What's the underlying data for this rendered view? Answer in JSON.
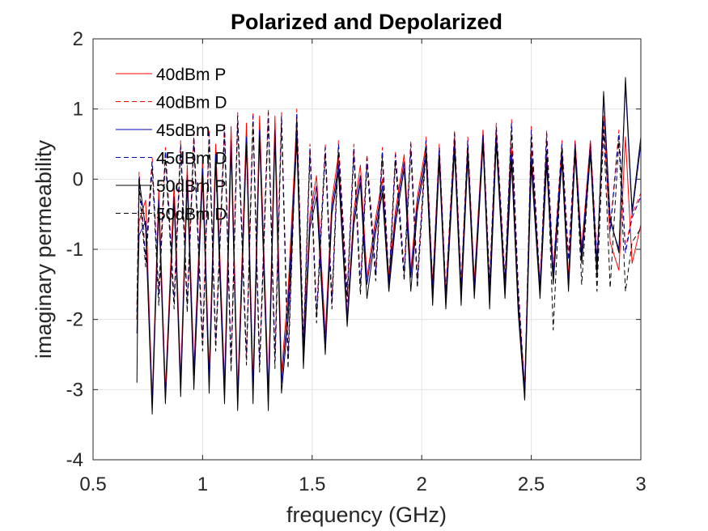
{
  "chart_data": {
    "type": "line",
    "title": "Polarized and Depolarized",
    "xlabel": "frequency (GHz)",
    "ylabel": "imaginary permeability",
    "xlim": [
      0.5,
      3
    ],
    "ylim": [
      -4,
      2
    ],
    "xticks": [
      "0.5",
      "1",
      "1.5",
      "2",
      "2.5",
      "3"
    ],
    "yticks": [
      "-4",
      "-3",
      "-2",
      "-1",
      "0",
      "1",
      "2"
    ],
    "grid": true,
    "legend_position": "top-left",
    "series": [
      {
        "name": "40dBm P",
        "color": "#ff0000",
        "dash": "solid",
        "x": [
          0.7,
          0.71,
          0.74,
          0.77,
          0.8,
          0.83,
          0.87,
          0.9,
          0.93,
          0.96,
          1.0,
          1.03,
          1.06,
          1.1,
          1.13,
          1.16,
          1.2,
          1.23,
          1.26,
          1.3,
          1.33,
          1.36,
          1.39,
          1.43,
          1.46,
          1.49,
          1.52,
          1.56,
          1.59,
          1.62,
          1.66,
          1.69,
          1.72,
          1.75,
          1.79,
          1.82,
          1.85,
          1.88,
          1.92,
          1.95,
          1.98,
          2.02,
          2.05,
          2.08,
          2.11,
          2.15,
          2.18,
          2.21,
          2.24,
          2.28,
          2.31,
          2.34,
          2.38,
          2.41,
          2.44,
          2.47,
          2.5,
          2.54,
          2.57,
          2.6,
          2.64,
          2.67,
          2.7,
          2.73,
          2.77,
          2.8,
          2.83,
          2.86,
          2.9,
          2.93,
          2.96,
          3.0
        ],
        "y": [
          -2.0,
          -0.6,
          -0.3,
          -3.15,
          -0.15,
          -3.0,
          -0.05,
          -2.85,
          0.2,
          -2.7,
          0.3,
          -2.75,
          0.5,
          -2.9,
          0.75,
          -3.05,
          0.8,
          -2.9,
          0.9,
          -3.0,
          0.9,
          -2.75,
          -1.6,
          0.85,
          -2.45,
          -0.5,
          0.05,
          -2.2,
          -0.3,
          0.35,
          -1.95,
          -0.45,
          0.2,
          -1.4,
          -0.55,
          0.0,
          -1.4,
          -0.45,
          0.35,
          -1.3,
          -0.25,
          0.5,
          -1.5,
          0.45,
          -1.65,
          0.6,
          -1.55,
          0.5,
          -1.45,
          0.7,
          -1.6,
          0.7,
          -1.5,
          0.45,
          -1.7,
          -2.95,
          0.4,
          -1.5,
          0.4,
          -1.3,
          0.45,
          -1.4,
          0.55,
          -1.0,
          0.55,
          -1.2,
          0.9,
          -0.9,
          -1.3,
          0.6,
          -1.2,
          -0.65
        ]
      },
      {
        "name": "40dBm D",
        "color": "#ff0000",
        "dash": "dashed",
        "x": [
          0.7,
          0.71,
          0.74,
          0.77,
          0.8,
          0.83,
          0.87,
          0.9,
          0.93,
          0.96,
          1.0,
          1.03,
          1.06,
          1.1,
          1.13,
          1.16,
          1.2,
          1.23,
          1.26,
          1.3,
          1.33,
          1.36,
          1.39,
          1.43,
          1.46,
          1.49,
          1.52,
          1.56,
          1.59,
          1.62,
          1.66,
          1.69,
          1.72,
          1.75,
          1.79,
          1.82,
          1.85,
          1.88,
          1.92,
          1.95,
          1.98,
          2.02,
          2.05,
          2.08,
          2.11,
          2.15,
          2.18,
          2.21,
          2.24,
          2.28,
          2.31,
          2.34,
          2.38,
          2.41,
          2.44,
          2.47,
          2.5,
          2.54,
          2.57,
          2.6,
          2.64,
          2.67,
          2.7,
          2.73,
          2.77,
          2.8,
          2.83,
          2.86,
          2.9,
          2.93,
          2.96,
          3.0
        ],
        "y": [
          -1.8,
          0.1,
          -1.1,
          0.3,
          -1.6,
          0.45,
          -1.7,
          0.55,
          -1.75,
          0.65,
          -2.3,
          0.7,
          -2.3,
          0.8,
          -2.6,
          0.95,
          -2.5,
          0.95,
          -2.6,
          1.0,
          -2.5,
          0.95,
          -2.5,
          1.0,
          -2.3,
          0.5,
          -1.9,
          0.5,
          -1.7,
          0.55,
          -1.6,
          0.5,
          -1.5,
          0.35,
          -1.3,
          0.45,
          -1.45,
          0.4,
          -1.3,
          0.55,
          -1.4,
          0.6,
          -1.5,
          0.5,
          -1.6,
          0.7,
          -1.5,
          0.6,
          -1.5,
          0.7,
          -1.45,
          0.8,
          -1.4,
          0.85,
          -1.5,
          -3.0,
          0.75,
          -1.5,
          0.7,
          -1.3,
          0.55,
          -1.1,
          0.55,
          -1.0,
          0.55,
          -1.1,
          0.9,
          -0.7,
          0.7,
          -1.0,
          -0.5,
          -0.2
        ]
      },
      {
        "name": "45dBm P",
        "color": "#0000aa",
        "dash": "solid",
        "x": [
          0.7,
          0.71,
          0.74,
          0.77,
          0.8,
          0.83,
          0.87,
          0.9,
          0.93,
          0.96,
          1.0,
          1.03,
          1.06,
          1.1,
          1.13,
          1.16,
          1.2,
          1.23,
          1.26,
          1.3,
          1.33,
          1.36,
          1.39,
          1.43,
          1.46,
          1.49,
          1.52,
          1.56,
          1.59,
          1.62,
          1.66,
          1.69,
          1.72,
          1.75,
          1.79,
          1.82,
          1.85,
          1.88,
          1.92,
          1.95,
          1.98,
          2.02,
          2.05,
          2.08,
          2.11,
          2.15,
          2.18,
          2.21,
          2.24,
          2.28,
          2.31,
          2.34,
          2.38,
          2.41,
          2.44,
          2.47,
          2.5,
          2.54,
          2.57,
          2.6,
          2.64,
          2.67,
          2.7,
          2.73,
          2.77,
          2.8,
          2.83,
          2.86,
          2.9,
          2.93,
          2.96,
          3.0
        ],
        "y": [
          -2.2,
          -0.8,
          -0.6,
          -3.2,
          -0.3,
          -3.1,
          -0.25,
          -2.95,
          0.05,
          -2.8,
          0.15,
          -2.85,
          0.35,
          -3.0,
          0.55,
          -3.15,
          0.6,
          -3.0,
          0.7,
          -3.1,
          0.7,
          -2.9,
          -1.8,
          0.65,
          -2.55,
          -0.6,
          -0.1,
          -2.35,
          -0.4,
          0.2,
          -2.0,
          -0.55,
          0.05,
          -1.5,
          -0.65,
          -0.1,
          -1.5,
          -0.55,
          0.25,
          -1.4,
          -0.35,
          0.4,
          -1.6,
          0.35,
          -1.75,
          0.5,
          -1.65,
          0.4,
          -1.55,
          0.6,
          -1.7,
          0.6,
          -1.6,
          0.35,
          -1.8,
          -3.0,
          0.3,
          -1.6,
          0.3,
          -1.4,
          0.35,
          -1.5,
          0.45,
          -1.1,
          0.45,
          -1.3,
          1.2,
          -0.6,
          -1.0,
          1.35,
          -0.5,
          0.5
        ]
      },
      {
        "name": "45dBm D",
        "color": "#0000aa",
        "dash": "dashed",
        "x": [
          0.7,
          0.71,
          0.74,
          0.77,
          0.8,
          0.83,
          0.87,
          0.9,
          0.93,
          0.96,
          1.0,
          1.03,
          1.06,
          1.1,
          1.13,
          1.16,
          1.2,
          1.23,
          1.26,
          1.3,
          1.33,
          1.36,
          1.39,
          1.43,
          1.46,
          1.49,
          1.52,
          1.56,
          1.59,
          1.62,
          1.66,
          1.69,
          1.72,
          1.75,
          1.79,
          1.82,
          1.85,
          1.88,
          1.92,
          1.95,
          1.98,
          2.02,
          2.05,
          2.08,
          2.11,
          2.15,
          2.18,
          2.21,
          2.24,
          2.28,
          2.31,
          2.34,
          2.38,
          2.41,
          2.44,
          2.47,
          2.5,
          2.54,
          2.57,
          2.6,
          2.64,
          2.67,
          2.7,
          2.73,
          2.77,
          2.8,
          2.83,
          2.86,
          2.9,
          2.93,
          2.96,
          3.0
        ],
        "y": [
          -1.9,
          0.05,
          -1.15,
          0.25,
          -1.65,
          0.4,
          -1.75,
          0.5,
          -1.8,
          0.6,
          -2.35,
          0.65,
          -2.35,
          0.75,
          -2.65,
          0.9,
          -2.55,
          0.9,
          -2.65,
          0.95,
          -2.55,
          0.9,
          -2.55,
          0.95,
          -2.35,
          0.45,
          -1.95,
          0.45,
          -1.75,
          0.5,
          -1.65,
          0.45,
          -1.55,
          0.3,
          -1.35,
          0.4,
          -1.5,
          0.35,
          -1.35,
          0.5,
          -1.45,
          0.55,
          -1.55,
          0.45,
          -1.65,
          0.65,
          -1.55,
          0.55,
          -1.55,
          0.65,
          -1.5,
          0.75,
          -1.45,
          0.8,
          -1.55,
          -3.05,
          0.7,
          -1.55,
          0.65,
          -1.35,
          0.5,
          -1.15,
          0.5,
          -1.05,
          0.5,
          -1.15,
          0.85,
          -0.75,
          0.65,
          -1.05,
          -0.55,
          -0.25
        ]
      },
      {
        "name": "50dBm P",
        "color": "#000000",
        "dash": "solid",
        "x": [
          0.7,
          0.71,
          0.74,
          0.77,
          0.8,
          0.83,
          0.87,
          0.9,
          0.93,
          0.96,
          1.0,
          1.03,
          1.06,
          1.1,
          1.13,
          1.16,
          1.2,
          1.23,
          1.26,
          1.3,
          1.33,
          1.36,
          1.39,
          1.43,
          1.46,
          1.49,
          1.52,
          1.56,
          1.59,
          1.62,
          1.66,
          1.69,
          1.72,
          1.75,
          1.79,
          1.82,
          1.85,
          1.88,
          1.92,
          1.95,
          1.98,
          2.02,
          2.05,
          2.08,
          2.11,
          2.15,
          2.18,
          2.21,
          2.24,
          2.28,
          2.31,
          2.34,
          2.38,
          2.41,
          2.44,
          2.47,
          2.5,
          2.54,
          2.57,
          2.6,
          2.64,
          2.67,
          2.7,
          2.73,
          2.77,
          2.8,
          2.83,
          2.86,
          2.9,
          2.93,
          2.96,
          3.0
        ],
        "y": [
          -2.9,
          0.0,
          -0.7,
          -3.35,
          -0.4,
          -3.2,
          -0.3,
          -3.1,
          -0.05,
          -3.0,
          0.05,
          -3.05,
          0.25,
          -3.2,
          0.45,
          -3.3,
          0.5,
          -3.2,
          0.6,
          -3.3,
          0.6,
          -3.05,
          -2.0,
          0.55,
          -2.7,
          -0.7,
          -0.25,
          -2.5,
          -0.5,
          0.1,
          -2.1,
          -0.65,
          -0.05,
          -1.7,
          -0.75,
          -0.2,
          -1.6,
          -0.65,
          0.15,
          -1.6,
          -0.45,
          0.3,
          -1.8,
          0.25,
          -1.85,
          0.4,
          -1.8,
          0.3,
          -1.7,
          0.5,
          -1.85,
          0.5,
          -1.7,
          0.25,
          -1.9,
          -3.15,
          0.2,
          -1.7,
          0.2,
          -1.5,
          0.25,
          -1.6,
          0.35,
          -1.2,
          0.35,
          -1.4,
          1.25,
          -0.55,
          -1.05,
          1.45,
          -0.45,
          0.6
        ]
      },
      {
        "name": "50dBm D",
        "color": "#000000",
        "dash": "dashed",
        "x": [
          0.7,
          0.71,
          0.74,
          0.77,
          0.8,
          0.83,
          0.87,
          0.9,
          0.93,
          0.96,
          1.0,
          1.03,
          1.06,
          1.1,
          1.13,
          1.16,
          1.2,
          1.23,
          1.26,
          1.3,
          1.33,
          1.36,
          1.39,
          1.43,
          1.46,
          1.49,
          1.52,
          1.56,
          1.59,
          1.62,
          1.66,
          1.69,
          1.72,
          1.75,
          1.79,
          1.82,
          1.85,
          1.88,
          1.92,
          1.95,
          1.98,
          2.02,
          2.05,
          2.08,
          2.11,
          2.15,
          2.18,
          2.21,
          2.24,
          2.28,
          2.31,
          2.34,
          2.38,
          2.41,
          2.44,
          2.47,
          2.5,
          2.54,
          2.57,
          2.6,
          2.64,
          2.67,
          2.7,
          2.73,
          2.77,
          2.8,
          2.83,
          2.86,
          2.9,
          2.93,
          2.96,
          3.0
        ],
        "y": [
          -2.0,
          -0.1,
          -1.25,
          0.15,
          -1.8,
          0.3,
          -1.85,
          0.4,
          -1.9,
          0.5,
          -2.45,
          0.55,
          -2.45,
          0.65,
          -2.75,
          0.8,
          -2.65,
          0.8,
          -2.75,
          0.85,
          -2.7,
          0.8,
          -2.7,
          0.85,
          -2.45,
          0.35,
          -2.05,
          0.35,
          -1.85,
          0.4,
          -1.75,
          0.35,
          -1.65,
          0.2,
          -1.45,
          0.3,
          -1.6,
          0.25,
          -1.45,
          0.4,
          -1.55,
          0.45,
          -1.65,
          0.35,
          -1.75,
          0.55,
          -1.65,
          0.45,
          -1.65,
          0.55,
          -1.6,
          0.65,
          -1.55,
          0.7,
          -1.65,
          -3.15,
          0.6,
          -1.65,
          0.55,
          -2.15,
          0.45,
          -1.5,
          0.45,
          -1.5,
          0.45,
          -1.6,
          0.7,
          -1.55,
          0.55,
          -1.6,
          -0.9,
          -0.7
        ]
      }
    ]
  }
}
